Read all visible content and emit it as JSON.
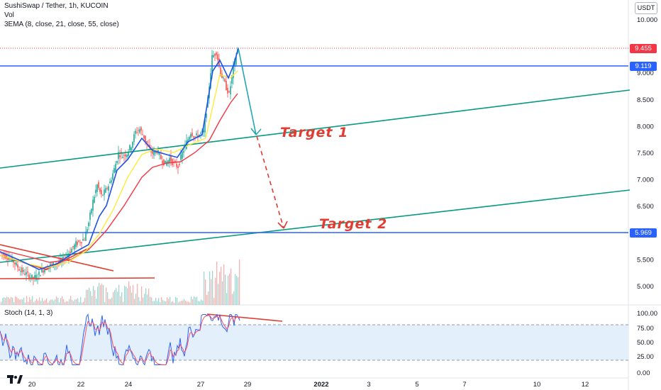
{
  "header": {
    "title": "SushiSwap / Tether, 1h, KUCOIN",
    "volume_label": "Vol",
    "ema_label": "3EMA (8, close, 21, close, 55, close)",
    "currency": "USDT"
  },
  "price_tags": {
    "last_price": "9.455",
    "resistance": "9.119",
    "support": "5.969",
    "last_color": "#f23645",
    "line_color": "#2962ff"
  },
  "annotations": {
    "target1": "Target 1",
    "target2": "Target 2"
  },
  "stoch": {
    "label": "Stoch (14, 1, 3)",
    "y_ticks": [
      "100.00",
      "75.00",
      "50.00",
      "25.00",
      "0.00"
    ],
    "y_values": [
      100,
      75,
      50,
      25,
      0
    ]
  },
  "chart_data": {
    "type": "line",
    "y_ticks": [
      "10.000",
      "9.000",
      "8.500",
      "8.000",
      "7.500",
      "7.000",
      "6.500",
      "5.500",
      "5.000"
    ],
    "y_tick_values": [
      10.0,
      9.0,
      8.5,
      8.0,
      7.5,
      7.0,
      6.5,
      5.5,
      5.0
    ],
    "ylim": [
      4.6,
      10.3
    ],
    "x_ticks": [
      "20",
      "22",
      "24",
      "27",
      "29",
      "2022",
      "3",
      "5",
      "7",
      "10",
      "12"
    ],
    "price_series": {
      "x": [
        0,
        6,
        12,
        18,
        24,
        30,
        36,
        42,
        48,
        54,
        60,
        66,
        72,
        78,
        84,
        90,
        96,
        102,
        108,
        114,
        120,
        126,
        132,
        138,
        144,
        150,
        156,
        162,
        168,
        174,
        180,
        186,
        192,
        198,
        204,
        210,
        216,
        222,
        228,
        234,
        240,
        246,
        252,
        258,
        264,
        270,
        276,
        282,
        288,
        294,
        300,
        306,
        312,
        318,
        324,
        330,
        336
      ],
      "values": [
        5.65,
        5.6,
        5.55,
        5.5,
        5.4,
        5.3,
        5.25,
        5.2,
        5.15,
        5.2,
        5.3,
        5.35,
        5.4,
        5.42,
        5.45,
        5.5,
        5.6,
        5.7,
        5.8,
        5.85,
        5.9,
        6.2,
        6.6,
        6.9,
        6.7,
        6.8,
        6.95,
        7.2,
        7.5,
        7.45,
        7.5,
        7.65,
        7.9,
        7.95,
        7.8,
        7.6,
        7.5,
        7.55,
        7.4,
        7.3,
        7.4,
        7.3,
        7.25,
        7.5,
        7.7,
        7.9,
        7.8,
        7.85,
        7.9,
        8.5,
        9.3,
        9.4,
        9.0,
        8.8,
        8.6,
        9.1,
        9.45
      ]
    }
  }
}
